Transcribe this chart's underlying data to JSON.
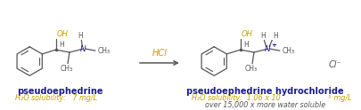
{
  "bg_color": "#ffffff",
  "arrow_color": "#555555",
  "hcl_label": "HCl",
  "hcl_color": "#c8a000",
  "title_left": "pseudoephedrine",
  "title_right": "pseudoephedrine hydrochloride",
  "title_color": "#1a1a8c",
  "solubility_color": "#c8a000",
  "sol_label_left": "H₂O solubility:   7 mg/L",
  "sol_label_right_extra": "over 15,000 x more water soluble",
  "text_color": "#555555",
  "lc": "#555555",
  "oh_color": "#c8a000",
  "n_color": "#1a1a8c",
  "cl_color": "#555555",
  "lw": 0.9
}
